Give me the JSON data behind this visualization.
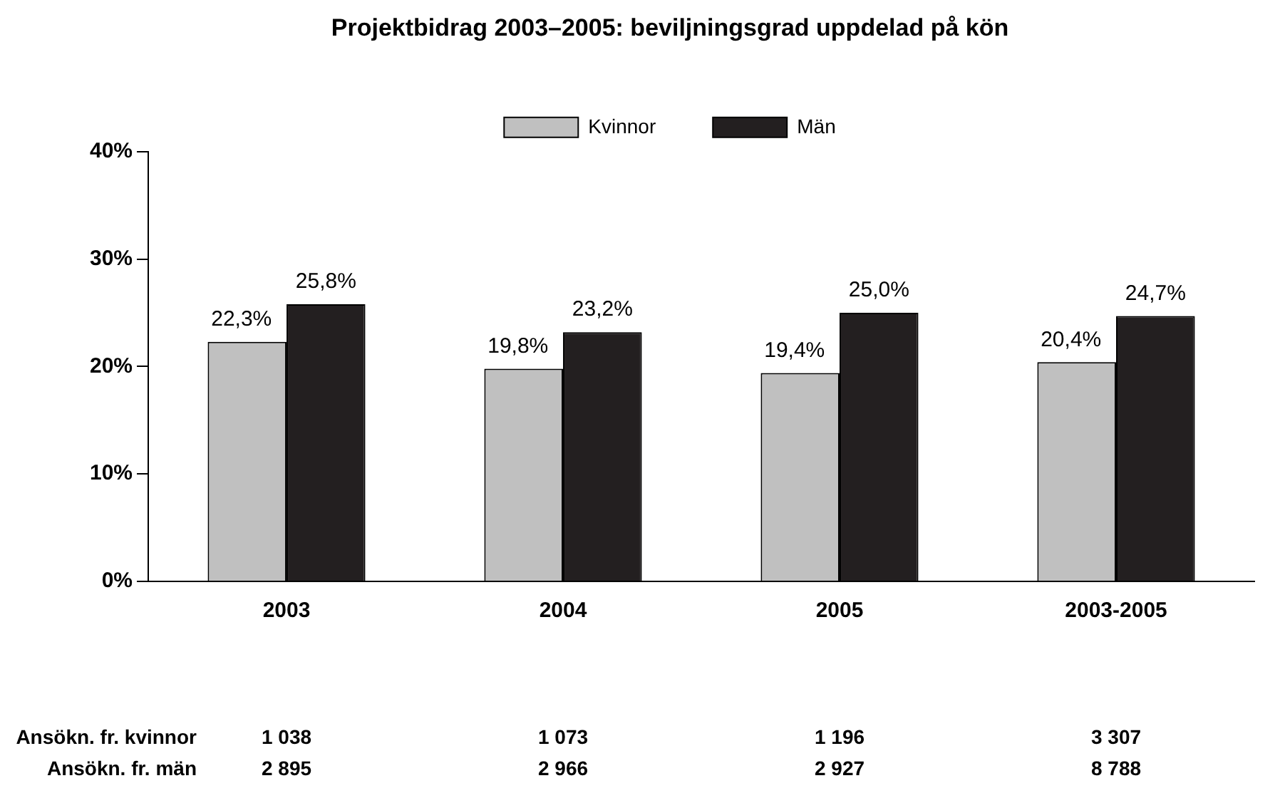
{
  "chart_data": {
    "type": "bar",
    "title": "Projektbidrag 2003–2005: beviljningsgrad uppdelad på kön",
    "categories": [
      "2003",
      "2004",
      "2005",
      "2003-2005"
    ],
    "series": [
      {
        "name": "Kvinnor",
        "color": "#c0c0c0",
        "values": [
          22.3,
          19.8,
          19.4,
          20.4
        ],
        "value_labels": [
          "22,3%",
          "19,8%",
          "19,4%",
          "20,4%"
        ]
      },
      {
        "name": "Män",
        "color": "#231f20",
        "values": [
          25.8,
          23.2,
          25.0,
          24.7
        ],
        "value_labels": [
          "25,8%",
          "23,2%",
          "25,0%",
          "24,7%"
        ]
      }
    ],
    "ylim": [
      0,
      40
    ],
    "yticks": [
      {
        "value": 0,
        "label": "0%"
      },
      {
        "value": 10,
        "label": "10%"
      },
      {
        "value": 20,
        "label": "20%"
      },
      {
        "value": 30,
        "label": "30%"
      },
      {
        "value": 40,
        "label": "40%"
      }
    ],
    "grid": false,
    "legend": "top",
    "annotations": [
      "Ansökn. fr. kvinnor",
      "1 038",
      "1 073",
      "1 196",
      "3 307",
      "Ansökn. fr. män",
      "2 895",
      "2 966",
      "2 927",
      "8 788"
    ]
  }
}
